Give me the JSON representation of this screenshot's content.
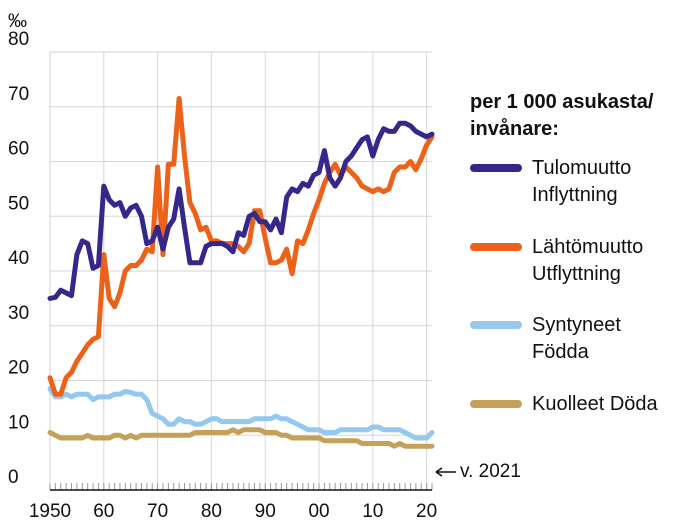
{
  "chart_data": {
    "type": "line",
    "y_label": "‰",
    "legend_title": "per 1 000 asukasta/ invånare:",
    "annotation": "v. 2021",
    "x": [
      1950,
      1951,
      1952,
      1953,
      1954,
      1955,
      1956,
      1957,
      1958,
      1959,
      1960,
      1961,
      1962,
      1963,
      1964,
      1965,
      1966,
      1967,
      1968,
      1969,
      1970,
      1971,
      1972,
      1973,
      1974,
      1975,
      1976,
      1977,
      1978,
      1979,
      1980,
      1981,
      1982,
      1983,
      1984,
      1985,
      1986,
      1987,
      1988,
      1989,
      1990,
      1991,
      1992,
      1993,
      1994,
      1995,
      1996,
      1997,
      1998,
      1999,
      2000,
      2001,
      2002,
      2003,
      2004,
      2005,
      2006,
      2007,
      2008,
      2009,
      2010,
      2011,
      2012,
      2013,
      2014,
      2015,
      2016,
      2017,
      2018,
      2019,
      2020,
      2021
    ],
    "series": [
      {
        "name": "Tulomuutto Inflyttning",
        "color": "#35288a",
        "values": [
          35,
          35.2,
          36.5,
          36,
          35.5,
          43,
          45.5,
          45,
          40.5,
          41,
          55.5,
          53,
          52,
          52.5,
          50,
          51.5,
          52,
          50,
          45,
          45.5,
          48,
          44,
          48,
          49.5,
          55,
          48,
          41.5,
          41.5,
          41.5,
          44.5,
          45,
          45,
          45,
          44.5,
          43.5,
          47,
          46.5,
          50,
          50.5,
          49,
          49,
          47.5,
          49.5,
          47,
          53.5,
          55,
          54.5,
          56,
          55.5,
          57.5,
          58,
          62,
          57,
          55.5,
          57,
          60,
          61,
          62.5,
          64,
          64.5,
          61,
          64,
          66,
          65.5,
          65.5,
          67,
          67,
          66.5,
          65.5,
          65,
          64.5,
          65
        ]
      },
      {
        "name": "Lähtömuutto Utflyttning",
        "color": "#ec6219",
        "values": [
          20.5,
          17.5,
          17.5,
          20.5,
          21.5,
          23.5,
          25,
          26.5,
          27.5,
          28,
          43,
          35,
          33.5,
          36,
          40,
          41,
          41,
          42,
          44,
          43.5,
          59,
          43,
          59.5,
          59.5,
          71.5,
          61,
          52.5,
          50.5,
          47.5,
          48,
          45.5,
          45.5,
          45,
          45,
          45,
          44.5,
          43.5,
          45,
          51,
          51,
          46,
          41.5,
          41.5,
          42,
          44,
          39.5,
          45.5,
          45,
          47.5,
          50.5,
          53,
          56,
          58,
          59.5,
          57.5,
          59,
          58,
          57,
          55.5,
          55,
          54.5,
          55,
          54.5,
          55,
          58,
          59,
          59,
          60,
          58.5,
          60.5,
          63,
          64.5
        ]
      },
      {
        "name": "Syntyneet Födda",
        "color": "#94c8ee",
        "values": [
          18.5,
          17,
          17,
          17.5,
          17,
          17.5,
          17.5,
          17.5,
          16.5,
          17,
          17,
          17,
          17.5,
          17.5,
          18,
          17.8,
          17.5,
          17.5,
          16.5,
          14,
          13.5,
          13,
          12,
          12,
          13,
          12.5,
          12.5,
          12,
          12,
          12.5,
          13,
          13,
          12.5,
          12.5,
          12.5,
          12.5,
          12.5,
          12.5,
          13,
          13,
          13,
          13,
          13.5,
          13,
          13,
          12.5,
          12,
          11.5,
          11,
          11,
          11,
          10.5,
          10.5,
          10.5,
          11,
          11,
          11,
          11,
          11,
          11,
          11.5,
          11.5,
          11,
          11,
          11,
          11,
          10.5,
          10,
          9.5,
          9.5,
          9.5,
          10.5
        ]
      },
      {
        "name": "Kuolleet Döda",
        "color": "#c4a059",
        "values": [
          10.5,
          10,
          9.5,
          9.5,
          9.5,
          9.5,
          9.5,
          10,
          9.5,
          9.5,
          9.5,
          9.5,
          10,
          10,
          9.5,
          10,
          9.5,
          10,
          10,
          10,
          10,
          10,
          10,
          10,
          10,
          10,
          10,
          10.5,
          10.5,
          10.5,
          10.5,
          10.5,
          10.5,
          10.5,
          11,
          10.5,
          11,
          11,
          11,
          11,
          10.5,
          10.5,
          10.5,
          10,
          10,
          9.5,
          9.5,
          9.5,
          9.5,
          9.5,
          9.5,
          9,
          9,
          9,
          9,
          9,
          9,
          9,
          8.5,
          8.5,
          8.5,
          8.5,
          8.5,
          8.5,
          8,
          8.5,
          8,
          8,
          8,
          8,
          8,
          8
        ]
      }
    ],
    "xlim": [
      1950,
      2021
    ],
    "xticks": [
      1950,
      {
        "value": 1960,
        "label": "60"
      },
      {
        "value": 1970,
        "label": "70"
      },
      {
        "value": 1980,
        "label": "80"
      },
      {
        "value": 1990,
        "label": "90"
      },
      {
        "value": 2000,
        "label": "00"
      },
      {
        "value": 2010,
        "label": "10"
      },
      {
        "value": 2020,
        "label": "20"
      }
    ],
    "ylim": [
      0,
      80
    ],
    "yticks": [
      0,
      10,
      20,
      30,
      40,
      50,
      60,
      70,
      80
    ],
    "grid": true
  }
}
